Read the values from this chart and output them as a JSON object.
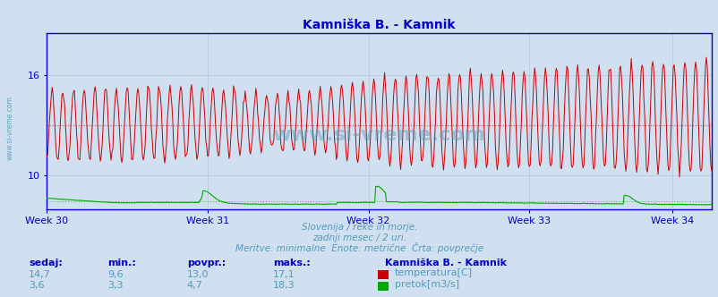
{
  "title": "Kamniška B. - Kamnik",
  "title_color": "#0000cc",
  "bg_color": "#d0e0f0",
  "plot_bg_color": "#d0e0f0",
  "weeks": [
    "Week 30",
    "Week 31",
    "Week 32",
    "Week 33",
    "Week 34"
  ],
  "week_positions": [
    0,
    180,
    360,
    540,
    700
  ],
  "n_points": 745,
  "temp_avg": 13.0,
  "temp_color": "#cc0000",
  "temp_avg_color": "#dd4444",
  "flow_avg": 4.7,
  "flow_color": "#00aa00",
  "flow_avg_color": "#44cc44",
  "ylim": [
    8,
    18.5
  ],
  "yticks": [
    10,
    16
  ],
  "subtitle1": "Slovenija / reke in morje.",
  "subtitle2": "zadnji mesec / 2 uri.",
  "subtitle3": "Meritve: minimalne  Enote: metrične  Črta: povprečje",
  "subtitle_color": "#5599bb",
  "watermark": "www.si-vreme.com",
  "watermark_color": "#5599bb",
  "label_color": "#0000cc",
  "axis_color": "#0000cc",
  "grid_color": "#aabbcc",
  "legend_title": "Kamniška B. - Kamnik",
  "legend_temp": "temperatura[C]",
  "legend_flow": "pretok[m3/s]",
  "stats_headers": [
    "sedaj:",
    "min.:",
    "povpr.:",
    "maks.:"
  ],
  "stats_temp": [
    "14,7",
    "9,6",
    "13,0",
    "17,1"
  ],
  "stats_flow": [
    "3,6",
    "3,3",
    "4,7",
    "18,3"
  ],
  "flow_scale_max": 20.0,
  "flow_display_max": 10.0,
  "flow_display_min": 8.0
}
